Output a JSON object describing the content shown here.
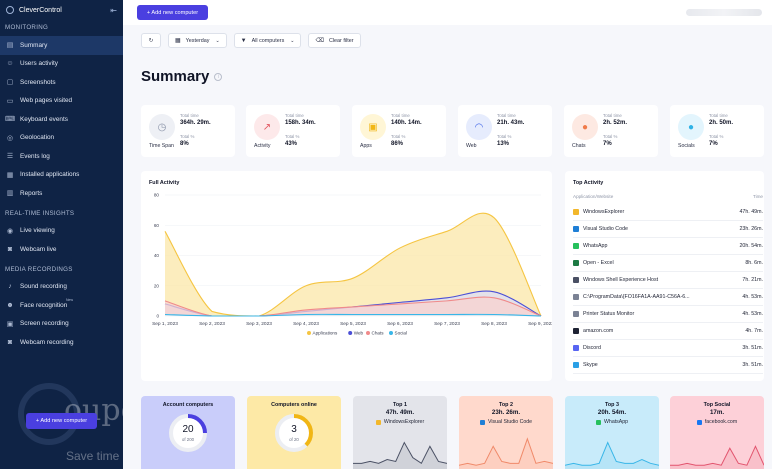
{
  "app": {
    "name": "CleverControl",
    "collapse_icon": "arrow-left-icon"
  },
  "sidebar": {
    "sections": [
      {
        "title": "MONITORING",
        "items": [
          {
            "label": "Summary",
            "icon": "summary-icon",
            "active": true
          },
          {
            "label": "Users activity",
            "icon": "users-icon"
          },
          {
            "label": "Screenshots",
            "icon": "screenshot-icon"
          },
          {
            "label": "Web pages visited",
            "icon": "web-icon"
          },
          {
            "label": "Keyboard events",
            "icon": "keyboard-icon"
          },
          {
            "label": "Geolocation",
            "icon": "location-icon"
          },
          {
            "label": "Events log",
            "icon": "list-icon"
          },
          {
            "label": "Installed applications",
            "icon": "apps-icon"
          },
          {
            "label": "Reports",
            "icon": "report-icon"
          }
        ]
      },
      {
        "title": "REAL-TIME INSIGHTS",
        "items": [
          {
            "label": "Live viewing",
            "icon": "eye-icon"
          },
          {
            "label": "Webcam live",
            "icon": "webcam-icon"
          }
        ]
      },
      {
        "title": "MEDIA RECORDINGS",
        "items": [
          {
            "label": "Sound recording",
            "icon": "sound-icon"
          },
          {
            "label": "Face recognition",
            "icon": "face-icon",
            "tag": "New"
          },
          {
            "label": "Screen recording",
            "icon": "screen-record-icon"
          },
          {
            "label": "Webcam recording",
            "icon": "webcam-icon"
          }
        ]
      }
    ],
    "add_button": "+ Add new computer",
    "watermark": {
      "word": "oupon",
      "sub": "Save time · Save money"
    }
  },
  "topbar": {
    "add_button": "+ Add new computer"
  },
  "filters": {
    "date": "Yesterday",
    "computers": "All computers",
    "clear": "Clear filter"
  },
  "page": {
    "title": "Summary"
  },
  "stats": [
    {
      "label": "Time Span",
      "total_label": "Total time",
      "total": "364h. 29m.",
      "pct_label": "Total %",
      "pct": "8%",
      "color": "#eef0f5",
      "icon_color": "#8a93a8",
      "icon": "clock-icon",
      "glyph": "◷"
    },
    {
      "label": "Activity",
      "total_label": "Total time",
      "total": "158h. 34m.",
      "pct_label": "Total %",
      "pct": "43%",
      "color": "#fde9ea",
      "icon_color": "#e2545e",
      "icon": "activity-icon",
      "glyph": "↗"
    },
    {
      "label": "Apps",
      "total_label": "Total time",
      "total": "140h. 14m.",
      "pct_label": "Total %",
      "pct": "86%",
      "color": "#fff6d6",
      "icon_color": "#f1b615",
      "icon": "apps-icon",
      "glyph": "▣"
    },
    {
      "label": "Web",
      "total_label": "Total time",
      "total": "21h. 43m.",
      "pct_label": "Total %",
      "pct": "13%",
      "color": "#e6ecfd",
      "icon_color": "#4166e8",
      "icon": "wifi-icon",
      "glyph": "◠"
    },
    {
      "label": "Chats",
      "total_label": "Total time",
      "total": "2h. 52m.",
      "pct_label": "Total %",
      "pct": "7%",
      "color": "#fde9e2",
      "icon_color": "#f07b4a",
      "icon": "chat-icon",
      "glyph": "●"
    },
    {
      "label": "Socials",
      "total_label": "Total time",
      "total": "2h. 50m.",
      "pct_label": "Total %",
      "pct": "7%",
      "color": "#e3f5fd",
      "icon_color": "#2fb2e6",
      "icon": "social-icon",
      "glyph": "●"
    }
  ],
  "full_activity": {
    "title": "Full Activity"
  },
  "chart_data": {
    "type": "area",
    "title": "Full Activity",
    "x": [
      "Sep 1, 2023",
      "Sep 2, 2023",
      "Sep 3, 2023",
      "Sep 4, 2023",
      "Sep 5, 2023",
      "Sep 6, 2023",
      "Sep 7, 2023",
      "Sep 8, 2023",
      "Sep 9, 2023"
    ],
    "ylim": [
      0,
      80
    ],
    "yticks": [
      0,
      20,
      40,
      60,
      80
    ],
    "grid": true,
    "legend": "bottom",
    "series": [
      {
        "name": "Applications",
        "color": "#f5c542",
        "fill": "#fbe7a8",
        "values": [
          56,
          3,
          0,
          20,
          25,
          45,
          56,
          65,
          0
        ]
      },
      {
        "name": "Web",
        "color": "#4b4fd6",
        "fill": "#dcdcf7",
        "values": [
          8,
          0,
          0,
          3,
          6,
          9,
          12,
          16,
          0
        ]
      },
      {
        "name": "Chats",
        "color": "#f08a8a",
        "fill": "#f8d2cf",
        "values": [
          10,
          0,
          0,
          4,
          6,
          8,
          10,
          12,
          0
        ]
      },
      {
        "name": "Social",
        "color": "#39b6e8",
        "fill": "#d4eef9",
        "values": [
          1,
          0,
          0,
          1,
          1,
          1,
          1,
          1,
          0
        ]
      }
    ]
  },
  "top_activity": {
    "title": "Top Activity",
    "col_app": "Application/Website",
    "col_time": "Time",
    "rows": [
      {
        "name": "WindowsExplorer",
        "time": "47h. 49m.",
        "icon": "folder-icon",
        "color": "#f2b72b"
      },
      {
        "name": "Visual Studio Code",
        "time": "23h. 26m.",
        "icon": "vscode-icon",
        "color": "#1f7fd6"
      },
      {
        "name": "WhatsApp",
        "time": "20h. 54m.",
        "icon": "whatsapp-icon",
        "color": "#26c05c"
      },
      {
        "name": "Open - Excel",
        "time": "8h. 6m.",
        "icon": "excel-icon",
        "color": "#1d7a43"
      },
      {
        "name": "Windows Shell Experience Host",
        "time": "7h. 21m.",
        "icon": "window-icon",
        "color": "#4a5064"
      },
      {
        "name": "C:\\ProgramData\\{FO16FA1A-AA91-C56A-6...",
        "time": "4h. 53m.",
        "icon": "file-icon",
        "color": "#7b8294"
      },
      {
        "name": "Printer Status Monitor",
        "time": "4h. 53m.",
        "icon": "printer-icon",
        "color": "#7b8294"
      },
      {
        "name": "amazon.com",
        "time": "4h. 7m.",
        "icon": "amazon-icon",
        "color": "#1e2233"
      },
      {
        "name": "Discord",
        "time": "3h. 51m.",
        "icon": "discord-icon",
        "color": "#5865f2"
      },
      {
        "name": "Skype",
        "time": "3h. 51m.",
        "icon": "skype-icon",
        "color": "#2aa0e6"
      }
    ]
  },
  "bottom_cards": [
    {
      "title": "Account computers",
      "value": "20",
      "of": "of 200",
      "fraction": 0.1,
      "bg": "#c9cdfa",
      "ring": "#4a3fe0"
    },
    {
      "title": "Computers online",
      "value": "3",
      "of": "of 20",
      "fraction": 0.15,
      "bg": "#fde9a6",
      "ring": "#f1b615"
    },
    {
      "title": "Top 1",
      "value": "47h. 49m.",
      "name": "WindowsExplorer",
      "icon": "folder-icon",
      "icon_color": "#f2b72b",
      "bg": "#e3e4ea",
      "line": "#4a5064",
      "spark": [
        3,
        3,
        4,
        3,
        5,
        4,
        14,
        6,
        3,
        12,
        4,
        3
      ]
    },
    {
      "title": "Top 2",
      "value": "23h. 26m.",
      "name": "Visual Studio Code",
      "icon": "vscode-icon",
      "icon_color": "#1f7fd6",
      "bg": "#ffd9cc",
      "line": "#f08a6a",
      "spark": [
        2,
        3,
        2,
        3,
        12,
        4,
        3,
        3,
        16,
        3,
        4,
        3
      ]
    },
    {
      "title": "Top 3",
      "value": "20h. 54m.",
      "name": "WhatsApp",
      "icon": "whatsapp-icon",
      "icon_color": "#26c05c",
      "bg": "#c8ebfa",
      "line": "#39b6e8",
      "spark": [
        2,
        3,
        2,
        2,
        3,
        14,
        4,
        3,
        3,
        5,
        3,
        2
      ]
    },
    {
      "title": "Top Social",
      "value": "17m.",
      "name": "facebook.com",
      "icon": "facebook-icon",
      "icon_color": "#1877f2",
      "bg": "#fdd0d8",
      "line": "#e2546e",
      "spark": [
        2,
        2,
        3,
        2,
        2,
        3,
        2,
        11,
        3,
        2,
        12,
        2
      ]
    }
  ]
}
